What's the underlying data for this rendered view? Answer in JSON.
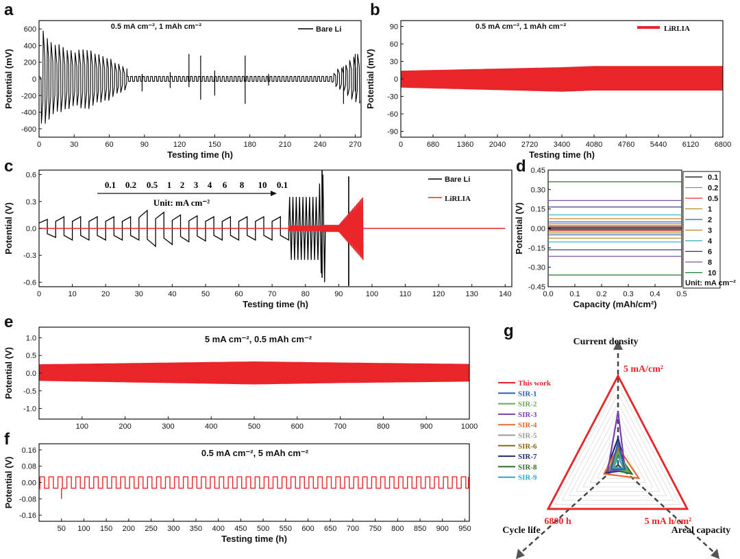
{
  "colors": {
    "bare": "#000000",
    "lirlia": "#e8262a"
  },
  "chart_data": [
    {
      "id": "a",
      "type": "line",
      "panel_label": "a",
      "condition": "0.5 mA cm⁻², 1 mAh cm⁻²",
      "xlabel": "Testing time (h)",
      "ylabel": "Potential (mV)",
      "xlim": [
        0,
        275
      ],
      "ylim": [
        -700,
        700
      ],
      "xticks": [
        "0",
        "30",
        "60",
        "90",
        "120",
        "150",
        "180",
        "210",
        "240",
        "270"
      ],
      "yticks": [
        "-600",
        "-400",
        "-200",
        "0",
        "200",
        "400",
        "600"
      ],
      "legend": [
        "Bare Li"
      ],
      "series": [
        {
          "name": "Bare Li",
          "color": "#000000",
          "peak_envelope_mV": [
            [
              4,
              600
            ],
            [
              10,
              450
            ],
            [
              20,
              400
            ],
            [
              30,
              330
            ],
            [
              40,
              380
            ],
            [
              50,
              300
            ],
            [
              60,
              260
            ],
            [
              65,
              200
            ],
            [
              80,
              100
            ],
            [
              100,
              60
            ],
            [
              120,
              70
            ],
            [
              140,
              100
            ],
            [
              180,
              100
            ],
            [
              200,
              60
            ],
            [
              250,
              40
            ],
            [
              255,
              120
            ],
            [
              260,
              150
            ],
            [
              270,
              300
            ]
          ]
        }
      ]
    },
    {
      "id": "b",
      "type": "line",
      "panel_label": "b",
      "condition": "0.5 mA cm⁻², 1 mAh cm⁻²",
      "xlabel": "Testing time (h)",
      "ylabel": "Potential (mV)",
      "xlim": [
        0,
        6800
      ],
      "ylim": [
        -100,
        100
      ],
      "xticks": [
        "0",
        "680",
        "1360",
        "2040",
        "2720",
        "3400",
        "4080",
        "4760",
        "5440",
        "6120",
        "6800"
      ],
      "yticks": [
        "-90",
        "-60",
        "-30",
        "0",
        "30",
        "60",
        "90"
      ],
      "legend": [
        "LiRLIA"
      ],
      "series": [
        {
          "name": "LiRLIA",
          "color": "#e8262a",
          "band_envelope_mV": [
            [
              0,
              14,
              -15
            ],
            [
              3400,
              20,
              -22
            ],
            [
              4080,
              22,
              -20
            ],
            [
              6800,
              22,
              -20
            ]
          ]
        }
      ]
    },
    {
      "id": "c",
      "type": "line",
      "panel_label": "c",
      "annotation_rates": [
        "0.1",
        "0.2",
        "0.5",
        "1",
        "2",
        "3",
        "4",
        "6",
        "8",
        "10",
        "0.1"
      ],
      "annotation_unit": "Unit:  mA cm⁻²",
      "xlabel": "Testing time (h)",
      "ylabel": "Potential (V)",
      "xlim": [
        0,
        142
      ],
      "ylim": [
        -0.65,
        0.65
      ],
      "xticks": [
        "0",
        "10",
        "20",
        "30",
        "40",
        "50",
        "60",
        "70",
        "80",
        "90",
        "100",
        "110",
        "120",
        "130",
        "140"
      ],
      "yticks": [
        "-0.6",
        "-0.3",
        "0.0",
        "0.3",
        "0.6"
      ],
      "legend": [
        "Bare Li",
        "LiRLIA"
      ],
      "series": [
        {
          "name": "Bare Li",
          "color": "#000000",
          "step_amplitude_V": [
            0.1,
            0.13,
            0.13,
            0.13,
            0.13,
            0.13,
            0.2,
            0.18,
            0.15,
            0.14,
            0.13,
            0.13,
            0.13,
            0.13,
            0.13
          ],
          "final_cycles_peak_V": [
            0.35,
            0.35,
            0.35,
            0.35,
            0.35,
            0.35,
            0.35,
            0.35,
            0.35,
            0.5,
            0.6
          ]
        },
        {
          "name": "LiRLIA",
          "color": "#e8262a",
          "flat_level_V": 0.0,
          "burst_peak_V": 0.36
        }
      ]
    },
    {
      "id": "d",
      "type": "line",
      "panel_label": "d",
      "xlabel": "Capacity (mAh/cm²)",
      "ylabel": "Potential (V)",
      "xlim": [
        0,
        0.5
      ],
      "ylim": [
        -0.45,
        0.45
      ],
      "xticks": [
        "0.0",
        "0.1",
        "0.2",
        "0.3",
        "0.4",
        "0.5"
      ],
      "yticks": [
        "-0.45",
        "-0.30",
        "-0.15",
        "0.00",
        "0.15",
        "0.30",
        "0.45"
      ],
      "legend_unit": "Unit: mA cm⁻²",
      "series": [
        {
          "name": "0.1",
          "color": "#000000",
          "v": 0.005
        },
        {
          "name": "0.2",
          "color": "#8a8a8a",
          "v": 0.012
        },
        {
          "name": "0.5",
          "color": "#e8262a",
          "v": 0.02
        },
        {
          "name": "1",
          "color": "#b8860b",
          "v": 0.035
        },
        {
          "name": "2",
          "color": "#2b5fb3",
          "v": 0.05
        },
        {
          "name": "3",
          "color": "#c07d10",
          "v": 0.075
        },
        {
          "name": "4",
          "color": "#2aa7c9",
          "v": 0.105
        },
        {
          "name": "6",
          "color": "#2c2a7a",
          "v": 0.165
        },
        {
          "name": "8",
          "color": "#7a55a8",
          "v": 0.215
        },
        {
          "name": "10",
          "color": "#1f7a2c",
          "v": 0.36
        }
      ]
    },
    {
      "id": "e",
      "type": "line",
      "panel_label": "e",
      "condition": "5 mA cm⁻², 0.5 mAh cm⁻²",
      "ylabel": "Potential (V)",
      "xlim": [
        0,
        1000
      ],
      "ylim": [
        -1.3,
        1.3
      ],
      "xticks": [
        "100",
        "200",
        "300",
        "400",
        "500",
        "600",
        "700",
        "800",
        "900",
        "1000"
      ],
      "yticks": [
        "-1.0",
        "-0.5",
        "0.0",
        "0.5",
        "1.0"
      ],
      "series": [
        {
          "name": "LiRLIA",
          "color": "#e8262a",
          "band_envelope_V": [
            [
              0,
              0.25,
              -0.22
            ],
            [
              500,
              0.33,
              -0.32
            ],
            [
              700,
              0.3,
              -0.28
            ],
            [
              1000,
              0.26,
              -0.24
            ]
          ]
        }
      ]
    },
    {
      "id": "f",
      "type": "line",
      "panel_label": "f",
      "condition": "0.5 mA cm⁻², 5 mAh cm⁻²",
      "xlabel": "Testing time (h)",
      "ylabel": "Potential (V)",
      "xlim": [
        0,
        960
      ],
      "ylim": [
        -0.19,
        0.19
      ],
      "xticks": [
        "50",
        "100",
        "150",
        "200",
        "250",
        "300",
        "350",
        "400",
        "450",
        "500",
        "550",
        "600",
        "650",
        "700",
        "750",
        "800",
        "850",
        "900",
        "950"
      ],
      "yticks": [
        "-0.16",
        "-0.08",
        "0.00",
        "0.08",
        "0.16"
      ],
      "series": [
        {
          "name": "LiRLIA",
          "color": "#e8262a",
          "square_wave_V": [
            0.028,
            -0.028
          ],
          "period_h": 20,
          "dip_at_h": 50,
          "dip_V": -0.08
        }
      ]
    },
    {
      "id": "g",
      "type": "radar",
      "panel_label": "g",
      "axes": [
        "Current density",
        "Areal capacity",
        "Cycle life"
      ],
      "axis_max_labels": [
        "5 mA/cm²",
        "5 mA h/cm²",
        "6800 h"
      ],
      "series": [
        {
          "name": "This work",
          "color": "#e8262a",
          "values": [
            1.0,
            1.0,
            1.0
          ]
        },
        {
          "name": "SIR-1",
          "color": "#2b5fb3",
          "values": [
            0.25,
            0.1,
            0.1
          ]
        },
        {
          "name": "SIR-2",
          "color": "#6aa84f",
          "values": [
            0.15,
            0.15,
            0.08
          ]
        },
        {
          "name": "SIR-3",
          "color": "#7a3fb0",
          "values": [
            0.6,
            0.1,
            0.15
          ]
        },
        {
          "name": "SIR-4",
          "color": "#e06d2f",
          "values": [
            0.2,
            0.3,
            0.2
          ]
        },
        {
          "name": "SIR-5",
          "color": "#9a9a9a",
          "values": [
            0.15,
            0.12,
            0.12
          ]
        },
        {
          "name": "SIR-6",
          "color": "#8a6a10",
          "values": [
            0.18,
            0.1,
            0.14
          ]
        },
        {
          "name": "SIR-7",
          "color": "#1f2a6b",
          "values": [
            0.3,
            0.12,
            0.18
          ]
        },
        {
          "name": "SIR-8",
          "color": "#2e6b2a",
          "values": [
            0.12,
            0.2,
            0.1
          ]
        },
        {
          "name": "SIR-9",
          "color": "#2aa7c9",
          "values": [
            0.1,
            0.08,
            0.06
          ]
        }
      ]
    }
  ]
}
